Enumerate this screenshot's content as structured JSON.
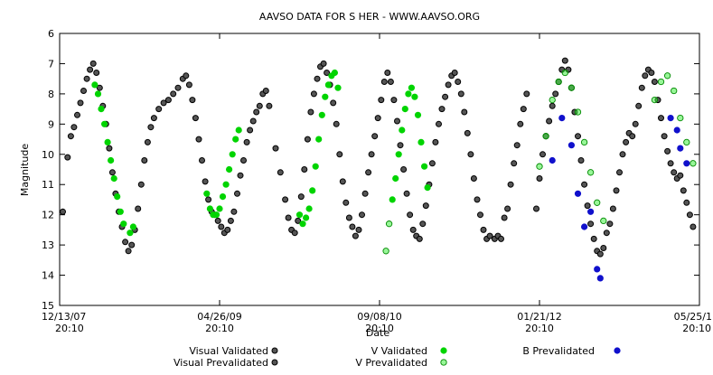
{
  "chart_data": {
    "type": "scatter",
    "title": "AAVSO DATA FOR S HER - WWW.AAVSO.ORG",
    "xlabel": "Date",
    "ylabel": "Magnitude",
    "ylim": [
      15,
      6
    ],
    "y_ticks": [
      6,
      7,
      8,
      9,
      10,
      11,
      12,
      13,
      14,
      15
    ],
    "x_ticks": [
      {
        "date": "12/13/07",
        "time": "20:10",
        "pos": 0
      },
      {
        "date": "04/26/09",
        "time": "20:10",
        "pos": 1
      },
      {
        "date": "09/08/10",
        "time": "20:10",
        "pos": 2
      },
      {
        "date": "01/21/12",
        "time": "20:10",
        "pos": 3
      },
      {
        "date": "05/25/1",
        "time": "20:10",
        "pos": 4
      }
    ],
    "x_unit": "tick intervals since 12/13/07 (each interval ~ 500 days)",
    "series": [
      {
        "name": "Visual Validated",
        "color": "#000000",
        "marker": "open-circle",
        "points": [
          [
            0.02,
            11.9
          ],
          [
            0.05,
            10.1
          ],
          [
            0.07,
            9.4
          ],
          [
            0.09,
            9.1
          ],
          [
            0.11,
            8.7
          ],
          [
            0.13,
            8.3
          ],
          [
            0.15,
            7.9
          ],
          [
            0.17,
            7.5
          ],
          [
            0.19,
            7.2
          ],
          [
            0.21,
            7.0
          ],
          [
            0.23,
            7.3
          ],
          [
            0.25,
            7.8
          ],
          [
            0.27,
            8.4
          ],
          [
            0.29,
            9.0
          ],
          [
            0.31,
            9.8
          ],
          [
            0.33,
            10.6
          ],
          [
            0.35,
            11.3
          ],
          [
            0.37,
            11.9
          ],
          [
            0.39,
            12.4
          ],
          [
            0.41,
            12.9
          ],
          [
            0.43,
            13.2
          ],
          [
            0.45,
            13.0
          ],
          [
            0.47,
            12.5
          ],
          [
            0.49,
            11.8
          ],
          [
            0.51,
            11.0
          ],
          [
            0.53,
            10.2
          ],
          [
            0.55,
            9.6
          ],
          [
            0.57,
            9.1
          ],
          [
            0.59,
            8.8
          ],
          [
            0.62,
            8.5
          ],
          [
            0.65,
            8.3
          ],
          [
            0.68,
            8.2
          ],
          [
            0.71,
            8.0
          ],
          [
            0.74,
            7.8
          ],
          [
            0.77,
            7.5
          ],
          [
            0.79,
            7.4
          ],
          [
            0.81,
            7.7
          ],
          [
            0.83,
            8.2
          ],
          [
            0.85,
            8.8
          ],
          [
            0.87,
            9.5
          ],
          [
            0.89,
            10.2
          ],
          [
            0.91,
            10.9
          ],
          [
            0.93,
            11.5
          ],
          [
            0.95,
            11.9
          ],
          [
            0.97,
            12.0
          ],
          [
            0.99,
            12.2
          ],
          [
            1.01,
            12.4
          ],
          [
            1.03,
            12.6
          ],
          [
            1.05,
            12.5
          ],
          [
            1.07,
            12.2
          ],
          [
            1.09,
            11.9
          ],
          [
            1.11,
            11.3
          ],
          [
            1.13,
            10.7
          ],
          [
            1.15,
            10.2
          ],
          [
            1.17,
            9.6
          ],
          [
            1.19,
            9.2
          ],
          [
            1.21,
            8.9
          ],
          [
            1.23,
            8.6
          ],
          [
            1.25,
            8.4
          ],
          [
            1.27,
            8.0
          ],
          [
            1.29,
            7.9
          ],
          [
            1.31,
            8.4
          ],
          [
            1.35,
            9.8
          ],
          [
            1.38,
            10.6
          ],
          [
            1.41,
            11.5
          ],
          [
            1.43,
            12.1
          ],
          [
            1.45,
            12.5
          ],
          [
            1.47,
            12.6
          ],
          [
            1.49,
            12.2
          ],
          [
            1.51,
            11.4
          ],
          [
            1.53,
            10.5
          ],
          [
            1.55,
            9.5
          ],
          [
            1.57,
            8.6
          ],
          [
            1.59,
            8.0
          ],
          [
            1.61,
            7.5
          ],
          [
            1.63,
            7.1
          ],
          [
            1.65,
            7.0
          ],
          [
            1.67,
            7.3
          ],
          [
            1.69,
            7.7
          ],
          [
            1.71,
            8.3
          ],
          [
            1.73,
            9.0
          ],
          [
            1.75,
            10.0
          ],
          [
            1.77,
            10.9
          ],
          [
            1.79,
            11.6
          ],
          [
            1.81,
            12.1
          ],
          [
            1.83,
            12.4
          ],
          [
            1.85,
            12.7
          ],
          [
            1.87,
            12.5
          ],
          [
            1.89,
            12.0
          ],
          [
            1.91,
            11.3
          ],
          [
            1.93,
            10.6
          ],
          [
            1.95,
            10.0
          ],
          [
            1.97,
            9.4
          ],
          [
            1.99,
            8.8
          ],
          [
            2.01,
            8.2
          ],
          [
            2.03,
            7.6
          ],
          [
            2.05,
            7.3
          ],
          [
            2.07,
            7.6
          ],
          [
            2.09,
            8.2
          ],
          [
            2.11,
            8.9
          ],
          [
            2.13,
            9.7
          ],
          [
            2.15,
            10.5
          ],
          [
            2.17,
            11.3
          ],
          [
            2.19,
            12.0
          ],
          [
            2.21,
            12.5
          ],
          [
            2.23,
            12.7
          ],
          [
            2.25,
            12.8
          ],
          [
            2.27,
            12.3
          ],
          [
            2.29,
            11.7
          ],
          [
            2.31,
            11.0
          ],
          [
            2.33,
            10.3
          ],
          [
            2.35,
            9.6
          ],
          [
            2.37,
            9.0
          ],
          [
            2.39,
            8.5
          ],
          [
            2.41,
            8.1
          ],
          [
            2.43,
            7.7
          ],
          [
            2.45,
            7.4
          ],
          [
            2.47,
            7.3
          ],
          [
            2.49,
            7.6
          ],
          [
            2.51,
            8.0
          ],
          [
            2.53,
            8.6
          ],
          [
            2.55,
            9.3
          ],
          [
            2.57,
            10.0
          ],
          [
            2.59,
            10.8
          ],
          [
            2.61,
            11.5
          ],
          [
            2.63,
            12.0
          ],
          [
            2.65,
            12.5
          ],
          [
            2.67,
            12.8
          ],
          [
            2.69,
            12.7
          ],
          [
            2.72,
            12.8
          ],
          [
            2.74,
            12.7
          ],
          [
            2.76,
            12.8
          ],
          [
            2.78,
            12.1
          ],
          [
            2.8,
            11.8
          ],
          [
            2.82,
            11.0
          ],
          [
            2.84,
            10.3
          ],
          [
            2.86,
            9.7
          ],
          [
            2.88,
            9.0
          ],
          [
            2.9,
            8.5
          ],
          [
            2.92,
            8.0
          ]
        ]
      },
      {
        "name": "Visual Prevalidated",
        "color": "#000000",
        "marker": "open-circle",
        "points": [
          [
            2.98,
            11.8
          ],
          [
            3.0,
            10.8
          ],
          [
            3.02,
            10.0
          ],
          [
            3.04,
            9.4
          ],
          [
            3.06,
            8.9
          ],
          [
            3.08,
            8.4
          ],
          [
            3.1,
            8.0
          ],
          [
            3.12,
            7.6
          ],
          [
            3.14,
            7.2
          ],
          [
            3.16,
            6.9
          ],
          [
            3.18,
            7.2
          ],
          [
            3.2,
            7.8
          ],
          [
            3.22,
            8.6
          ],
          [
            3.24,
            9.4
          ],
          [
            3.26,
            10.2
          ],
          [
            3.28,
            11.0
          ],
          [
            3.3,
            11.7
          ],
          [
            3.32,
            12.3
          ],
          [
            3.34,
            12.8
          ],
          [
            3.36,
            13.2
          ],
          [
            3.38,
            13.3
          ],
          [
            3.4,
            13.1
          ],
          [
            3.42,
            12.6
          ],
          [
            3.44,
            12.3
          ],
          [
            3.46,
            11.8
          ],
          [
            3.48,
            11.2
          ],
          [
            3.5,
            10.6
          ],
          [
            3.52,
            10.0
          ],
          [
            3.54,
            9.6
          ],
          [
            3.56,
            9.3
          ],
          [
            3.58,
            9.4
          ],
          [
            3.6,
            9.0
          ],
          [
            3.62,
            8.4
          ],
          [
            3.64,
            7.8
          ],
          [
            3.66,
            7.4
          ],
          [
            3.68,
            7.2
          ],
          [
            3.7,
            7.3
          ],
          [
            3.72,
            7.6
          ],
          [
            3.74,
            8.2
          ],
          [
            3.76,
            8.8
          ],
          [
            3.78,
            9.4
          ],
          [
            3.8,
            9.9
          ],
          [
            3.82,
            10.3
          ],
          [
            3.84,
            10.6
          ],
          [
            3.86,
            10.8
          ],
          [
            3.88,
            10.7
          ],
          [
            3.9,
            11.2
          ],
          [
            3.92,
            11.6
          ],
          [
            3.94,
            12.0
          ],
          [
            3.96,
            12.4
          ]
        ]
      },
      {
        "name": "V Validated",
        "color": "#00d400",
        "marker": "filled-circle",
        "points": [
          [
            0.22,
            7.7
          ],
          [
            0.24,
            8.0
          ],
          [
            0.26,
            8.5
          ],
          [
            0.28,
            9.0
          ],
          [
            0.3,
            9.6
          ],
          [
            0.32,
            10.2
          ],
          [
            0.34,
            10.8
          ],
          [
            0.36,
            11.4
          ],
          [
            0.38,
            11.9
          ],
          [
            0.4,
            12.3
          ],
          [
            0.44,
            12.6
          ],
          [
            0.46,
            12.4
          ],
          [
            0.92,
            11.3
          ],
          [
            0.94,
            11.8
          ],
          [
            0.96,
            12.0
          ],
          [
            0.98,
            12.0
          ],
          [
            1.0,
            11.8
          ],
          [
            1.02,
            11.4
          ],
          [
            1.04,
            11.0
          ],
          [
            1.06,
            10.5
          ],
          [
            1.08,
            10.0
          ],
          [
            1.1,
            9.5
          ],
          [
            1.12,
            9.2
          ],
          [
            1.5,
            12.0
          ],
          [
            1.52,
            12.3
          ],
          [
            1.54,
            12.1
          ],
          [
            1.56,
            11.8
          ],
          [
            1.58,
            11.2
          ],
          [
            1.6,
            10.4
          ],
          [
            1.62,
            9.5
          ],
          [
            1.64,
            8.7
          ],
          [
            1.66,
            8.1
          ],
          [
            1.68,
            7.7
          ],
          [
            1.7,
            7.4
          ],
          [
            1.72,
            7.3
          ],
          [
            1.74,
            7.8
          ],
          [
            2.08,
            11.5
          ],
          [
            2.1,
            10.8
          ],
          [
            2.12,
            10.0
          ],
          [
            2.14,
            9.2
          ],
          [
            2.16,
            8.5
          ],
          [
            2.18,
            8.0
          ],
          [
            2.2,
            7.8
          ],
          [
            2.22,
            8.1
          ],
          [
            2.24,
            8.7
          ],
          [
            2.26,
            9.6
          ],
          [
            2.28,
            10.4
          ],
          [
            2.3,
            11.1
          ]
        ]
      },
      {
        "name": "V Prevalidated",
        "color": "#44ee44",
        "marker": "open-circle-green",
        "points": [
          [
            2.04,
            13.2
          ],
          [
            2.06,
            12.3
          ],
          [
            3.0,
            10.4
          ],
          [
            3.04,
            9.4
          ],
          [
            3.08,
            8.2
          ],
          [
            3.12,
            7.6
          ],
          [
            3.16,
            7.3
          ],
          [
            3.2,
            7.8
          ],
          [
            3.24,
            8.6
          ],
          [
            3.28,
            9.6
          ],
          [
            3.32,
            10.6
          ],
          [
            3.36,
            11.6
          ],
          [
            3.4,
            12.2
          ],
          [
            3.72,
            8.2
          ],
          [
            3.76,
            7.6
          ],
          [
            3.8,
            7.4
          ],
          [
            3.84,
            7.9
          ],
          [
            3.88,
            8.8
          ],
          [
            3.92,
            9.6
          ],
          [
            3.96,
            10.3
          ]
        ]
      },
      {
        "name": "B Prevalidated",
        "color": "#1010cc",
        "marker": "filled-circle",
        "points": [
          [
            3.08,
            10.2
          ],
          [
            3.14,
            8.8
          ],
          [
            3.2,
            9.7
          ],
          [
            3.24,
            11.3
          ],
          [
            3.28,
            12.4
          ],
          [
            3.32,
            11.9
          ],
          [
            3.36,
            13.8
          ],
          [
            3.38,
            14.1
          ],
          [
            3.82,
            8.8
          ],
          [
            3.88,
            9.8
          ],
          [
            3.92,
            10.3
          ],
          [
            3.86,
            9.2
          ]
        ]
      }
    ],
    "legend": [
      {
        "label": "Visual Validated",
        "series": 0
      },
      {
        "label": "Visual Prevalidated",
        "series": 1
      },
      {
        "label": "V Validated",
        "series": 2
      },
      {
        "label": "V Prevalidated",
        "series": 3
      },
      {
        "label": "B Prevalidated",
        "series": 4
      }
    ]
  }
}
